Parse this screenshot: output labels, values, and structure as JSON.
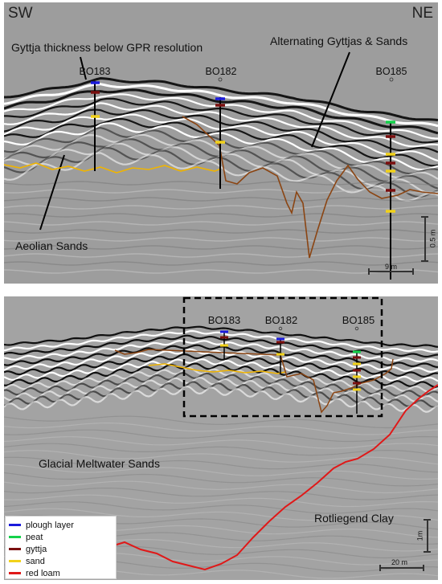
{
  "top_panel": {
    "dir_left": "SW",
    "dir_right": "NE",
    "label_gyttja_thickness": "Gyttja thickness below GPR resolution",
    "label_alternating": "Alternating Gyttjas & Sands",
    "label_aeolian": "Aeolian Sands",
    "boreholes": [
      "BO183",
      "BO182",
      "BO185"
    ],
    "scale_horizontal": "9 m",
    "scale_vertical": "0.5 m"
  },
  "bottom_panel": {
    "boreholes": [
      "BO183",
      "BO182",
      "BO185"
    ],
    "label_glacial": "Glacial Meltwater Sands",
    "label_rotliegend": "Rotliegend Clay",
    "scale_horizontal": "20 m",
    "scale_vertical": "1m"
  },
  "legend": {
    "items": [
      {
        "label": "plough layer",
        "color": "#1a1adc"
      },
      {
        "label": "peat",
        "color": "#14d24a"
      },
      {
        "label": "gyttja",
        "color": "#7a0f0f"
      },
      {
        "label": "sand",
        "color": "#f2d21a"
      },
      {
        "label": "red loam",
        "color": "#e01818"
      }
    ]
  },
  "colors": {
    "interpreted_gyttja_base": "#8b4513",
    "interpreted_sand_top": "#f0b400",
    "red_loam_line": "#e01818",
    "radargram_background": "#9a9a9a"
  }
}
